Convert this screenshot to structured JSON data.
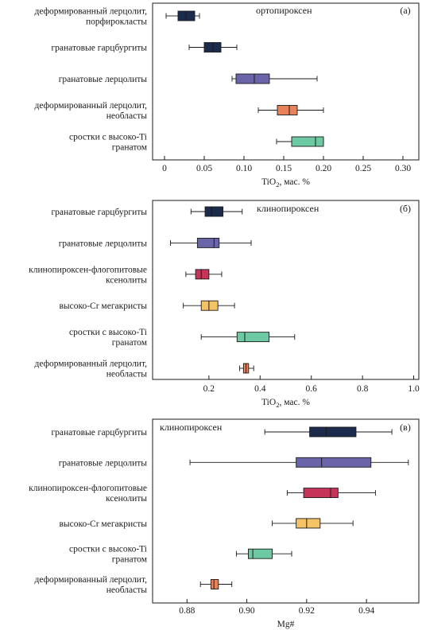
{
  "chart_data": [
    {
      "type": "box",
      "panel_letter": "(а)",
      "title": "ортопироксен",
      "xlabel": "TiO",
      "xlabel_sub": "2",
      "xlabel_tail": ", мас. %",
      "xlim": [
        -0.015,
        0.32
      ],
      "ticks": [
        0,
        0.05,
        0.1,
        0.15,
        0.2,
        0.25,
        0.3
      ],
      "tick_labels": [
        "0",
        "0.05",
        "0.10",
        "0.15",
        "0.20",
        "0.25",
        "0.30"
      ],
      "series": [
        {
          "label": [
            "деформированный лерцолит,",
            "порфирокласты"
          ],
          "color": "#1a2b4c",
          "min": 0.002,
          "q1": 0.017,
          "median": 0.027,
          "q3": 0.038,
          "max": 0.044
        },
        {
          "label": [
            "гранатовые гарцбургиты"
          ],
          "color": "#1a2b4c",
          "min": 0.031,
          "q1": 0.05,
          "median": 0.061,
          "q3": 0.071,
          "max": 0.091
        },
        {
          "label": [
            "гранатовые лерцолиты"
          ],
          "color": "#6a64a8",
          "min": 0.085,
          "q1": 0.09,
          "median": 0.113,
          "q3": 0.132,
          "max": 0.192
        },
        {
          "label": [
            "деформированный лерцолит,",
            "необласты"
          ],
          "color": "#e8825a",
          "min": 0.118,
          "q1": 0.142,
          "median": 0.157,
          "q3": 0.167,
          "max": 0.2
        },
        {
          "label": [
            "сростки с высоко-Ti",
            "гранатом"
          ],
          "color": "#6cc9a2",
          "min": 0.141,
          "q1": 0.16,
          "median": 0.19,
          "q3": 0.2,
          "max": 0.2
        }
      ]
    },
    {
      "type": "box",
      "panel_letter": "(б)",
      "title": "клинопироксен",
      "xlabel": "TiO",
      "xlabel_sub": "2",
      "xlabel_tail": ", мас. %",
      "xlim": [
        -0.02,
        1.02
      ],
      "ticks": [
        0.2,
        0.4,
        0.6,
        0.8,
        1.0
      ],
      "tick_labels": [
        "0.2",
        "0.4",
        "0.6",
        "0.8",
        "1.0"
      ],
      "series": [
        {
          "label": [
            "гранатовые гарцбургиты"
          ],
          "color": "#1a2b4c",
          "min": 0.13,
          "q1": 0.185,
          "median": 0.21,
          "q3": 0.255,
          "max": 0.33
        },
        {
          "label": [
            "гранатовые лерцолиты"
          ],
          "color": "#6a64a8",
          "min": 0.05,
          "q1": 0.155,
          "median": 0.22,
          "q3": 0.24,
          "max": 0.365
        },
        {
          "label": [
            "клинопироксен-флогопитовые",
            "ксенолиты"
          ],
          "color": "#c6345a",
          "min": 0.11,
          "q1": 0.148,
          "median": 0.17,
          "q3": 0.2,
          "max": 0.25
        },
        {
          "label": [
            "высоко-Cr мегакристы"
          ],
          "color": "#f5c265",
          "min": 0.1,
          "q1": 0.17,
          "median": 0.2,
          "q3": 0.235,
          "max": 0.3
        },
        {
          "label": [
            "сростки с высоко-Ti",
            "гранатом"
          ],
          "color": "#6cc9a2",
          "min": 0.17,
          "q1": 0.31,
          "median": 0.34,
          "q3": 0.435,
          "max": 0.535
        },
        {
          "label": [
            "деформированный лерцолит,",
            "необласты"
          ],
          "color": "#e8825a",
          "min": 0.32,
          "q1": 0.335,
          "median": 0.345,
          "q3": 0.355,
          "max": 0.375
        }
      ]
    },
    {
      "type": "box",
      "panel_letter": "(в)",
      "title": "клинопироксен",
      "xlabel": "Mg#",
      "xlabel_sub": "",
      "xlabel_tail": "",
      "xlim": [
        0.8685,
        0.9575
      ],
      "ticks": [
        0.88,
        0.9,
        0.92,
        0.94
      ],
      "tick_labels": [
        "0.88",
        "0.90",
        "0.92",
        "0.94"
      ],
      "series": [
        {
          "label": [
            "гранатовые гарцбургиты"
          ],
          "color": "#1a2b4c",
          "min": 0.906,
          "q1": 0.921,
          "median": 0.9265,
          "q3": 0.9365,
          "max": 0.9485
        },
        {
          "label": [
            "гранатовые лерцолиты"
          ],
          "color": "#6a64a8",
          "min": 0.881,
          "q1": 0.9165,
          "median": 0.925,
          "q3": 0.9415,
          "max": 0.954
        },
        {
          "label": [
            "клинопироксен-флогопитовые",
            "ксенолиты"
          ],
          "color": "#c6345a",
          "min": 0.9135,
          "q1": 0.919,
          "median": 0.928,
          "q3": 0.9305,
          "max": 0.943
        },
        {
          "label": [
            "высоко-Cr мегакристы"
          ],
          "color": "#f5c265",
          "min": 0.9085,
          "q1": 0.9165,
          "median": 0.92,
          "q3": 0.9245,
          "max": 0.9355
        },
        {
          "label": [
            "сростки с высоко-Ti",
            "гранатом"
          ],
          "color": "#6cc9a2",
          "min": 0.8965,
          "q1": 0.9005,
          "median": 0.902,
          "q3": 0.9085,
          "max": 0.915
        },
        {
          "label": [
            "деформированный лерцолит,",
            "необласты"
          ],
          "color": "#e8825a",
          "min": 0.8845,
          "q1": 0.888,
          "median": 0.889,
          "q3": 0.8905,
          "max": 0.895
        }
      ]
    }
  ]
}
